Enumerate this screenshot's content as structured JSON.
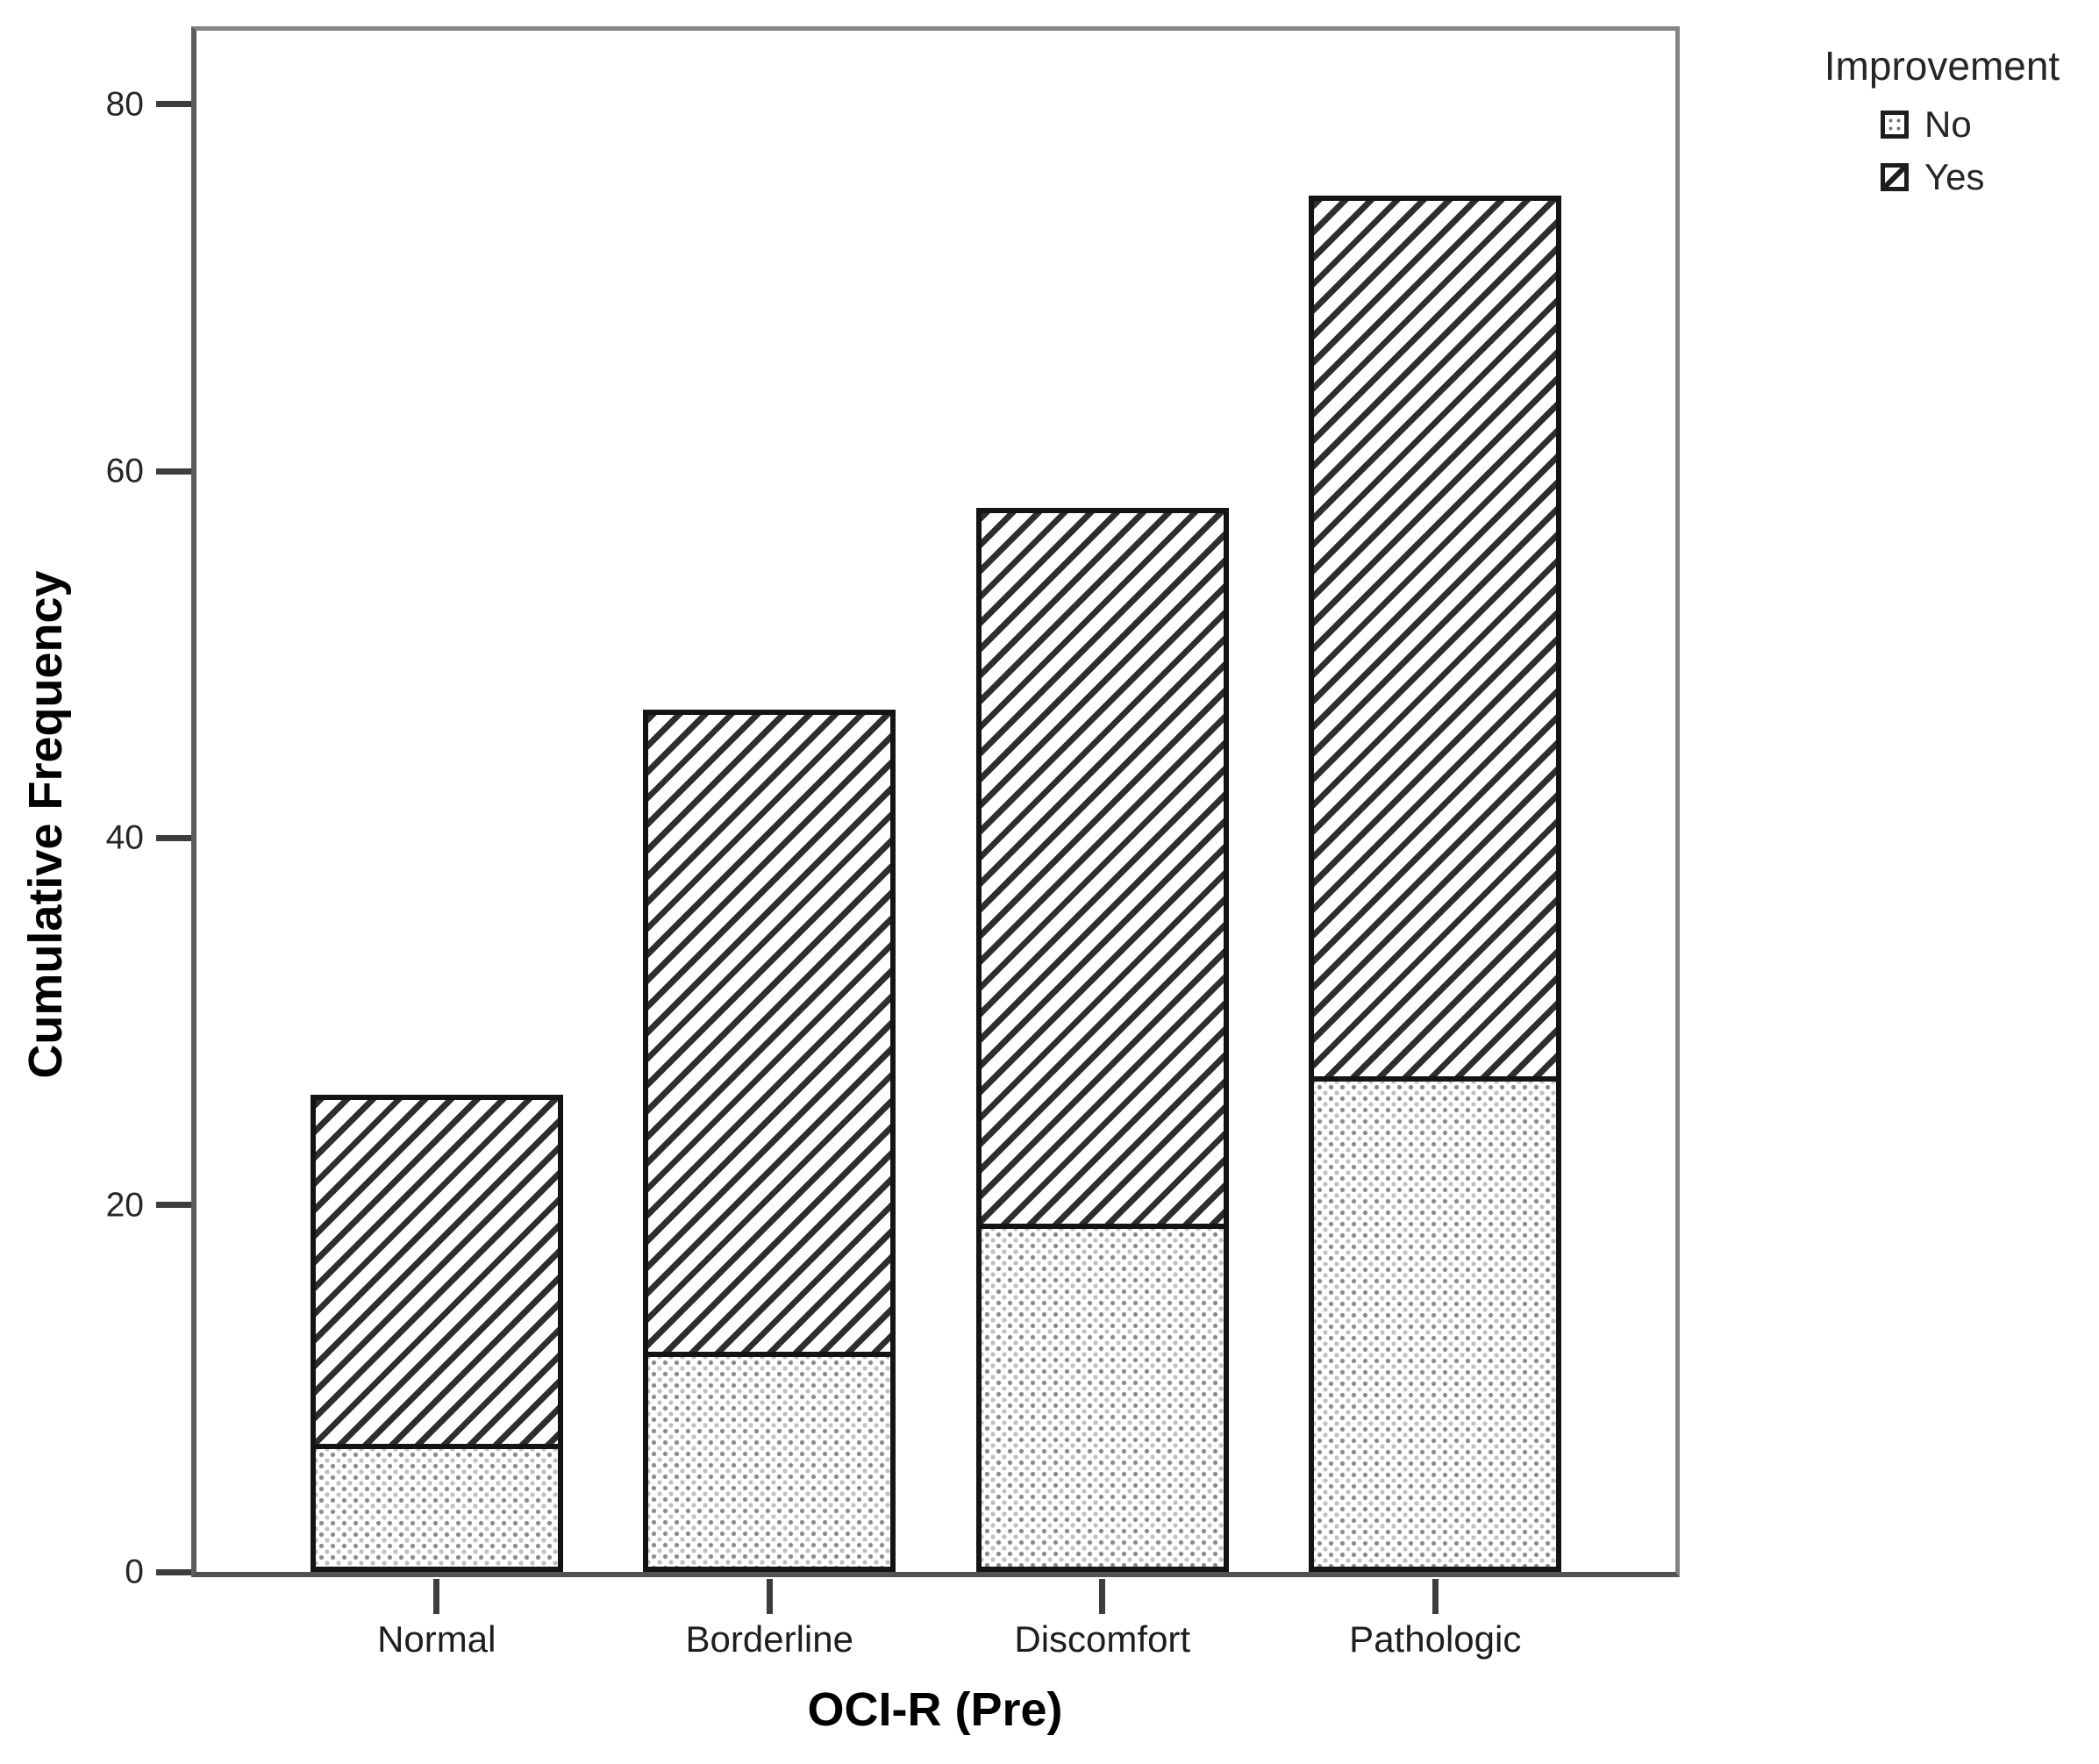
{
  "chart_data": {
    "type": "bar",
    "stacked": true,
    "title": "",
    "xlabel": "OCI-R (Pre)",
    "ylabel": "Cumulative Frequency",
    "categories": [
      "Normal",
      "Borderline",
      "Discomfort",
      "Pathologic"
    ],
    "series": [
      {
        "name": "No",
        "pattern": "dots",
        "values": [
          7,
          12,
          19,
          27
        ]
      },
      {
        "name": "Yes",
        "pattern": "diagonal-hatch",
        "values": [
          19,
          35,
          39,
          48
        ]
      }
    ],
    "stacked_totals": [
      26,
      47,
      58,
      75
    ],
    "y_ticks": [
      0,
      20,
      40,
      60,
      80
    ],
    "ylim": [
      0,
      84
    ],
    "grid": false,
    "legend": {
      "title": "Improvement",
      "position": "top-right-outside",
      "entries": [
        "No",
        "Yes"
      ]
    },
    "colors": {
      "bar_fill": "#ffffff",
      "bar_border": "#141414",
      "hatch_line": "#2e2e2e",
      "dot_gray": "#8a8a8a",
      "frame": "#848484",
      "axis": "#525252",
      "text": "#262626"
    }
  }
}
